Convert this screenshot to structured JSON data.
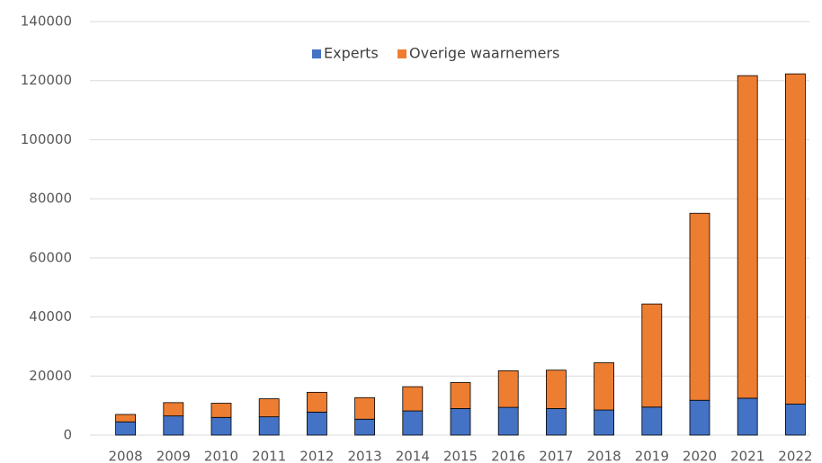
{
  "chart_data": {
    "type": "stacked_bar",
    "categories": [
      "2008",
      "2009",
      "2010",
      "2011",
      "2012",
      "2013",
      "2014",
      "2015",
      "2016",
      "2017",
      "2018",
      "2019",
      "2020",
      "2021",
      "2022"
    ],
    "series": [
      {
        "name": "Experts",
        "color": "#4472c4",
        "values": [
          4500,
          6500,
          6000,
          6200,
          7800,
          5400,
          8200,
          9000,
          9400,
          9000,
          8500,
          9500,
          11800,
          12500,
          10500
        ]
      },
      {
        "name": "Overige waarnemers",
        "color": "#ed7d31",
        "values": [
          2500,
          4500,
          4800,
          6100,
          6700,
          7300,
          8200,
          8800,
          12400,
          13000,
          16000,
          34900,
          63300,
          109200,
          111800
        ]
      }
    ],
    "ylim": [
      0,
      140000
    ],
    "yticks": [
      0,
      20000,
      40000,
      60000,
      80000,
      100000,
      120000,
      140000
    ],
    "grid": true,
    "legend": "top"
  }
}
